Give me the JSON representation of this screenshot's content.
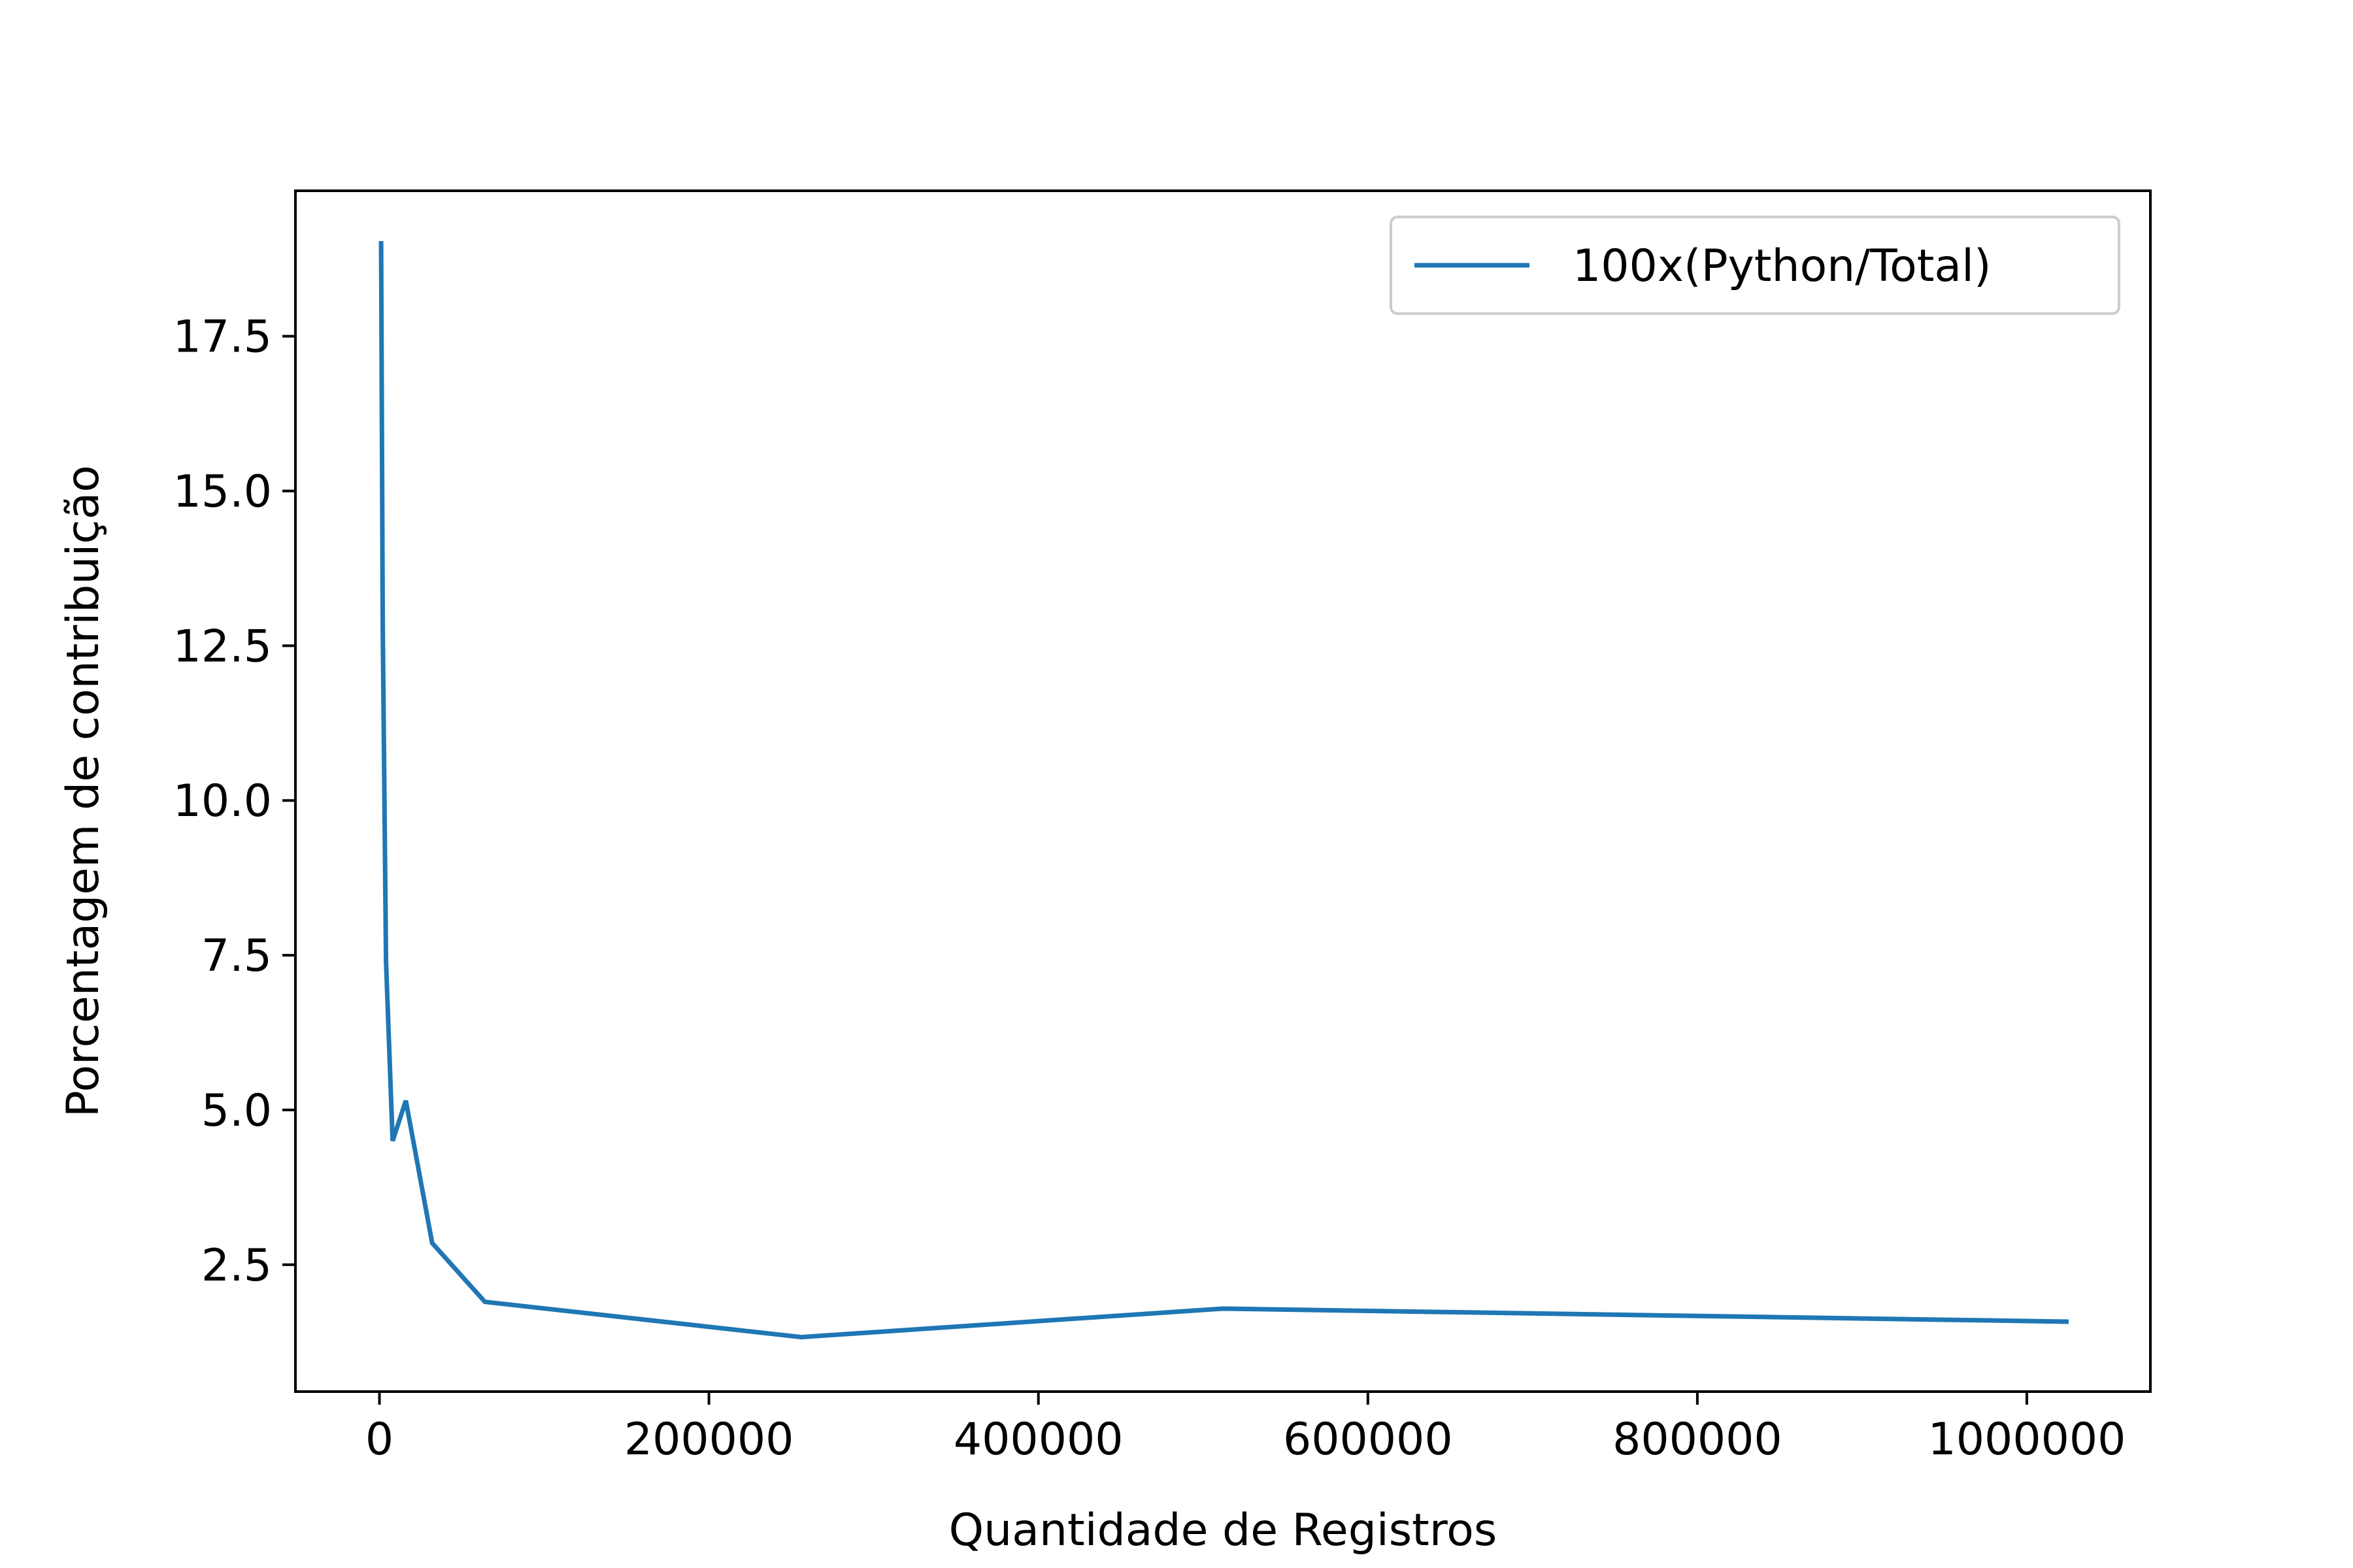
{
  "chart_data": {
    "type": "line",
    "title": "",
    "xlabel": "Quantidade de Registros",
    "ylabel": "Porcentagem de contribuição",
    "xlim": [
      -51000,
      1075000
    ],
    "ylim": [
      0.45,
      19.85
    ],
    "xticks": [
      0,
      200000,
      400000,
      600000,
      800000,
      1000000
    ],
    "xtick_labels": [
      "0",
      "200000",
      "400000",
      "600000",
      "800000",
      "1000000"
    ],
    "yticks": [
      2.5,
      5.0,
      7.5,
      10.0,
      12.5,
      15.0,
      17.5
    ],
    "ytick_labels": [
      "2.5",
      "5.0",
      "7.5",
      "10.0",
      "12.5",
      "15.0",
      "17.5"
    ],
    "grid": false,
    "legend": {
      "position": "top-right",
      "entries": [
        "100x(Python/Total)"
      ]
    },
    "series": [
      {
        "name": "100x(Python/Total)",
        "color": "#1f77b4",
        "x": [
          1000,
          2000,
          4000,
          8000,
          16000,
          32000,
          64000,
          256000,
          512000,
          1024000
        ],
        "y": [
          19.0,
          12.8,
          7.4,
          4.5,
          5.15,
          2.85,
          1.9,
          1.33,
          1.79,
          1.58
        ]
      }
    ]
  }
}
